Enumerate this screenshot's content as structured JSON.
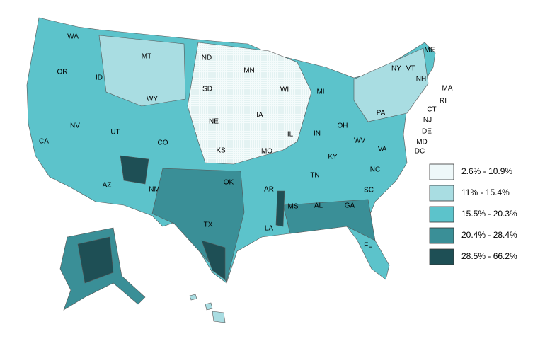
{
  "states": [
    "WA",
    "MT",
    "ND",
    "MN",
    "ME",
    "VT",
    "NH",
    "MA",
    "RI",
    "CT",
    "NY",
    "OR",
    "ID",
    "SD",
    "WI",
    "MI",
    "WY",
    "PA",
    "NJ",
    "NE",
    "IA",
    "IL",
    "IN",
    "OH",
    "DE",
    "MD",
    "DC",
    "NV",
    "UT",
    "CO",
    "KS",
    "MO",
    "KY",
    "WV",
    "VA",
    "CA",
    "AZ",
    "NM",
    "OK",
    "AR",
    "TN",
    "NC",
    "SC",
    "TX",
    "MS",
    "AL",
    "GA",
    "LA",
    "FL"
  ],
  "legend": [
    {
      "label": "2.6% - 10.9%",
      "color": "#eef8f9"
    },
    {
      "label": "11% - 15.4%",
      "color": "#a9dde2"
    },
    {
      "label": "15.5% - 20.3%",
      "color": "#5cc3cb"
    },
    {
      "label": "20.4% - 28.4%",
      "color": "#3a8f97"
    },
    {
      "label": "28.5% - 66.2%",
      "color": "#1e4f55"
    }
  ]
}
